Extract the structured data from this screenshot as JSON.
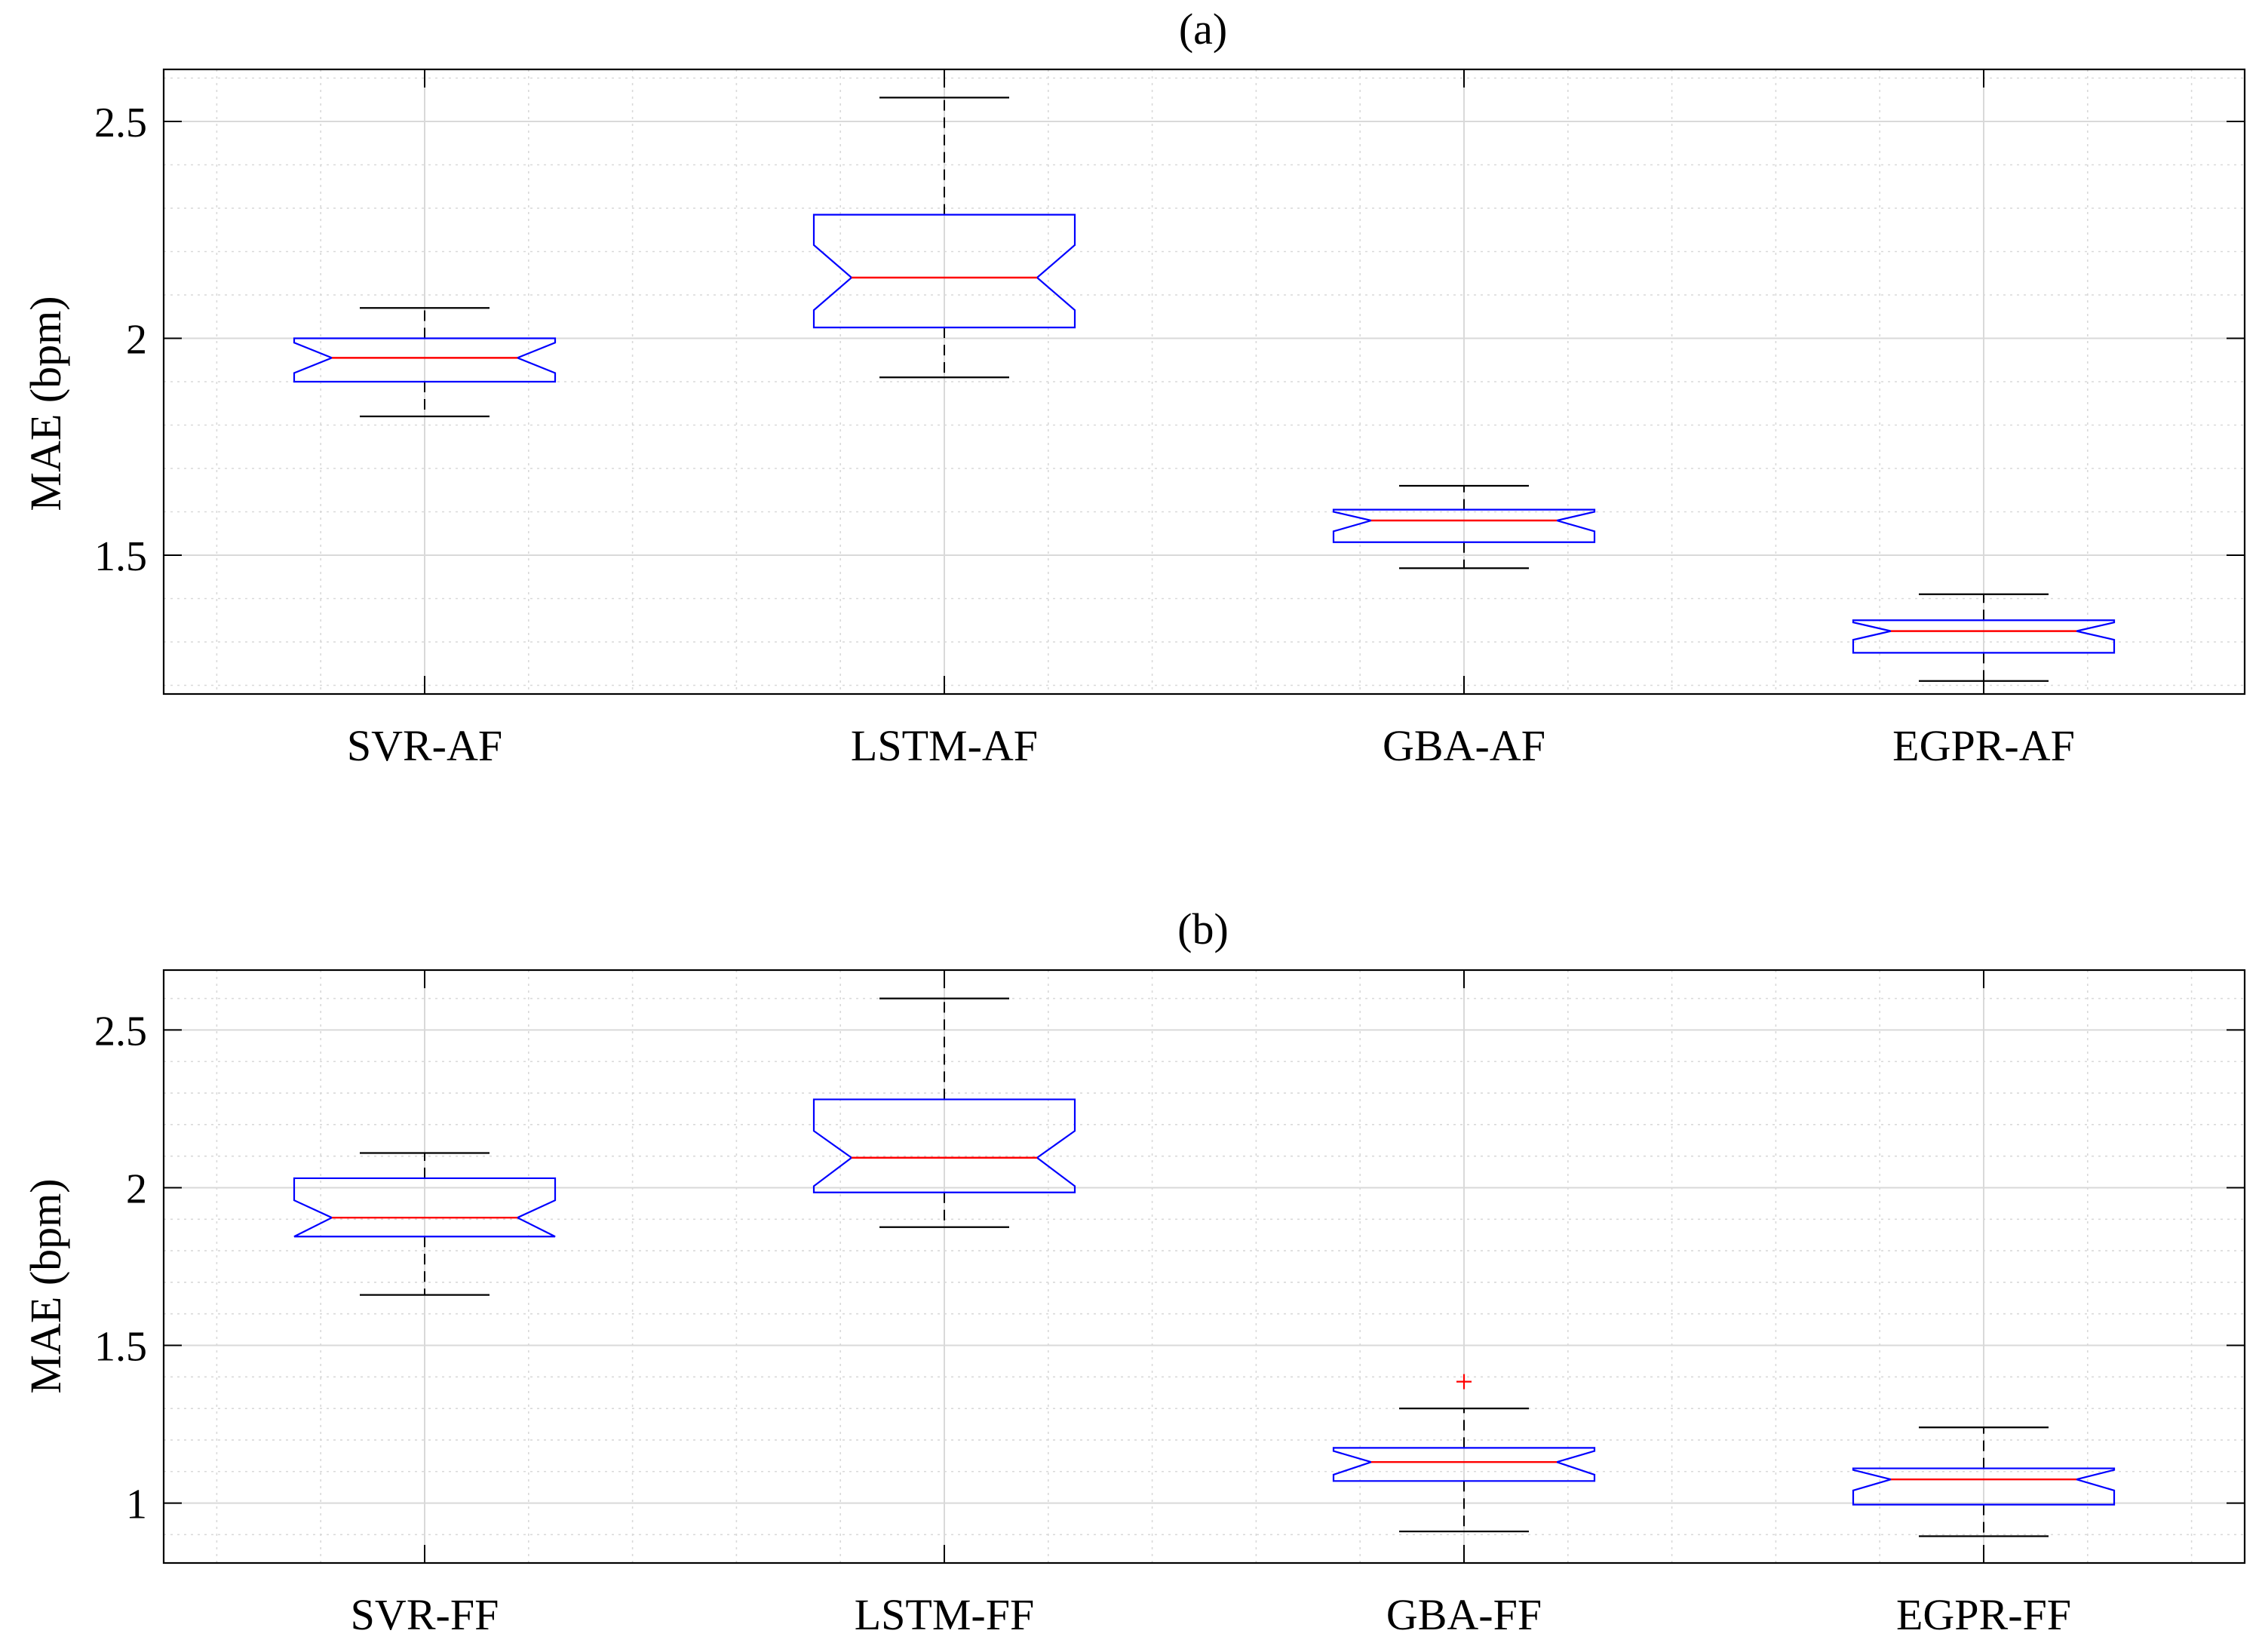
{
  "chart_data": [
    {
      "type": "boxplot",
      "notched": true,
      "title": "(a)",
      "xlabel": "",
      "ylabel": "MAE (bpm)",
      "ylim": [
        1.18,
        2.62
      ],
      "yticks": [
        1.5,
        2,
        2.5
      ],
      "ytick_labels": [
        "1.5",
        "2",
        "2.5"
      ],
      "grid": true,
      "minor_grid": true,
      "categories": [
        "SVR-AF",
        "LSTM-AF",
        "GBA-AF",
        "EGPR-AF"
      ],
      "boxes": [
        {
          "whisker_low": 1.82,
          "q1": 1.9,
          "median": 1.955,
          "q3": 2.0,
          "whisker_high": 2.07,
          "notch_low": 1.92,
          "notch_high": 1.99,
          "outliers": []
        },
        {
          "whisker_low": 1.91,
          "q1": 2.025,
          "median": 2.14,
          "q3": 2.285,
          "whisker_high": 2.555,
          "notch_low": 2.065,
          "notch_high": 2.215,
          "outliers": []
        },
        {
          "whisker_low": 1.47,
          "q1": 1.53,
          "median": 1.58,
          "q3": 1.605,
          "whisker_high": 1.66,
          "notch_low": 1.555,
          "notch_high": 1.6,
          "outliers": []
        },
        {
          "whisker_low": 1.21,
          "q1": 1.275,
          "median": 1.325,
          "q3": 1.35,
          "whisker_high": 1.41,
          "notch_low": 1.305,
          "notch_high": 1.345,
          "outliers": []
        }
      ]
    },
    {
      "type": "boxplot",
      "notched": true,
      "title": "(b)",
      "xlabel": "",
      "ylabel": "MAE (bpm)",
      "ylim": [
        0.81,
        2.69
      ],
      "yticks": [
        1,
        1.5,
        2,
        2.5
      ],
      "ytick_labels": [
        "1",
        "1.5",
        "2",
        "2.5"
      ],
      "grid": true,
      "minor_grid": true,
      "categories": [
        "SVR-FF",
        "LSTM-FF",
        "GBA-FF",
        "EGPR-FF"
      ],
      "boxes": [
        {
          "whisker_low": 1.66,
          "q1": 1.845,
          "median": 1.905,
          "q3": 2.03,
          "whisker_high": 2.11,
          "notch_low": 1.845,
          "notch_high": 1.96,
          "outliers": []
        },
        {
          "whisker_low": 1.875,
          "q1": 1.985,
          "median": 2.095,
          "q3": 2.28,
          "whisker_high": 2.6,
          "notch_low": 2.005,
          "notch_high": 2.18,
          "outliers": []
        },
        {
          "whisker_low": 0.91,
          "q1": 1.07,
          "median": 1.13,
          "q3": 1.175,
          "whisker_high": 1.3,
          "notch_low": 1.09,
          "notch_high": 1.165,
          "outliers": [
            1.385
          ]
        },
        {
          "whisker_low": 0.895,
          "q1": 0.995,
          "median": 1.075,
          "q3": 1.11,
          "whisker_high": 1.24,
          "notch_low": 1.04,
          "notch_high": 1.105,
          "outliers": []
        }
      ]
    }
  ],
  "colors": {
    "box": "#0000ff",
    "median": "#ff0000",
    "whisker": "#000000",
    "outlier": "#ff0000",
    "grid": "#d9d9d9",
    "axes": "#000000"
  }
}
